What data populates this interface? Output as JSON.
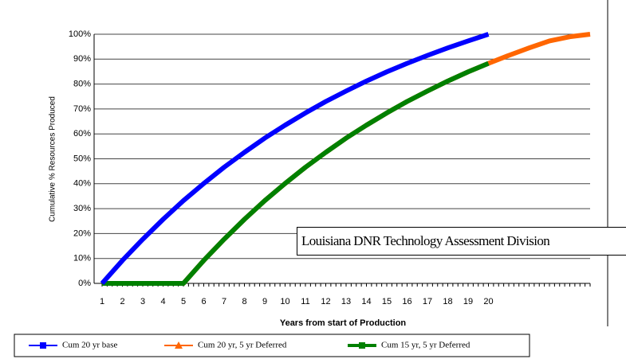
{
  "chart_data": {
    "type": "line",
    "x_label": "Years from start of Production",
    "y_label": "Cumulative % Resources Produced",
    "annotation": "Louisiana DNR Technology Assessment Division",
    "categories": [
      "1",
      "2",
      "3",
      "4",
      "5",
      "6",
      "7",
      "8",
      "9",
      "10",
      "11",
      "12",
      "13",
      "14",
      "15",
      "16",
      "17",
      "18",
      "19",
      "20",
      null,
      null,
      null,
      null,
      null
    ],
    "series": [
      {
        "name": "Cum 20 yr base",
        "color": "#0000ff",
        "marker": "square",
        "values": [
          0,
          9.2,
          17.7,
          25.7,
          33.2,
          40.1,
          46.6,
          52.6,
          58.3,
          63.5,
          68.4,
          73.0,
          77.2,
          81.2,
          84.9,
          88.3,
          91.5,
          94.5,
          97.3,
          100,
          null,
          null,
          null,
          null,
          null
        ]
      },
      {
        "name": "Cum 20 yr, 5 yr Deferred",
        "color": "#ff6600",
        "marker": "triangle",
        "values": [
          0,
          0,
          0,
          0,
          0,
          9.2,
          17.7,
          25.7,
          33.2,
          40.1,
          46.6,
          52.6,
          58.3,
          63.5,
          68.4,
          73.0,
          77.2,
          81.2,
          84.9,
          88.3,
          91.5,
          94.5,
          97.3,
          99.0,
          100
        ]
      },
      {
        "name": "Cum 15 yr, 5 yr Deferred",
        "color": "#008000",
        "marker": "square",
        "values": [
          0,
          0,
          0,
          0,
          0,
          9.2,
          17.7,
          25.7,
          33.2,
          40.1,
          46.6,
          52.6,
          58.3,
          63.5,
          68.4,
          73.0,
          77.2,
          81.2,
          84.9,
          88.3,
          null,
          null,
          null,
          null,
          null
        ]
      }
    ],
    "ylim": [
      0,
      100
    ],
    "yticks": [
      {
        "value": 0,
        "label": "0%"
      },
      {
        "value": 10,
        "label": "10%"
      },
      {
        "value": 20,
        "label": "20%"
      },
      {
        "value": 30,
        "label": "30%"
      },
      {
        "value": 40,
        "label": "40%"
      },
      {
        "value": 50,
        "label": "50%"
      },
      {
        "value": 60,
        "label": "60%"
      },
      {
        "value": 70,
        "label": "70%"
      },
      {
        "value": 80,
        "label": "80%"
      },
      {
        "value": 90,
        "label": "90%"
      },
      {
        "value": 100,
        "label": "100%"
      }
    ],
    "grid": true
  }
}
